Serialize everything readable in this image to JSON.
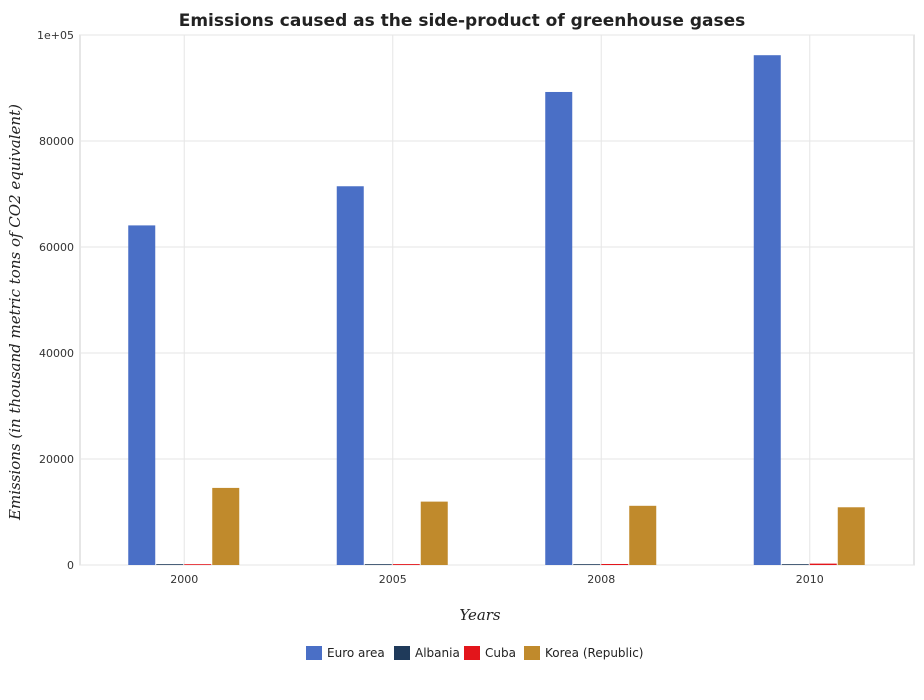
{
  "chart_data": {
    "type": "bar",
    "title": "Emissions caused as the side-product of greenhouse gases",
    "xlabel": "Years",
    "ylabel": "Emissions (in thousand metric tons of CO2 equivalent)",
    "categories": [
      "2000",
      "2005",
      "2008",
      "2010"
    ],
    "ylim": [
      0,
      100000
    ],
    "yticks": [
      0,
      20000,
      40000,
      60000,
      80000,
      100000
    ],
    "ytick_labels": [
      "0",
      "20000",
      "40000",
      "60000",
      "80000",
      "1e+05"
    ],
    "grid": true,
    "legend_position": "bottom",
    "series": [
      {
        "name": "Euro area",
        "color": "#4a6fc6",
        "values": [
          64076,
          71461,
          89250,
          96189
        ]
      },
      {
        "name": "Albania",
        "color": "#1f3a5a",
        "values": [
          40,
          57,
          70,
          80
        ]
      },
      {
        "name": "Cuba",
        "color": "#e3151b",
        "values": [
          20,
          170,
          190,
          260
        ]
      },
      {
        "name": "Korea (Republic)",
        "color": "#c08a2c",
        "values": [
          14546,
          11959,
          11169,
          10891
        ]
      }
    ]
  }
}
